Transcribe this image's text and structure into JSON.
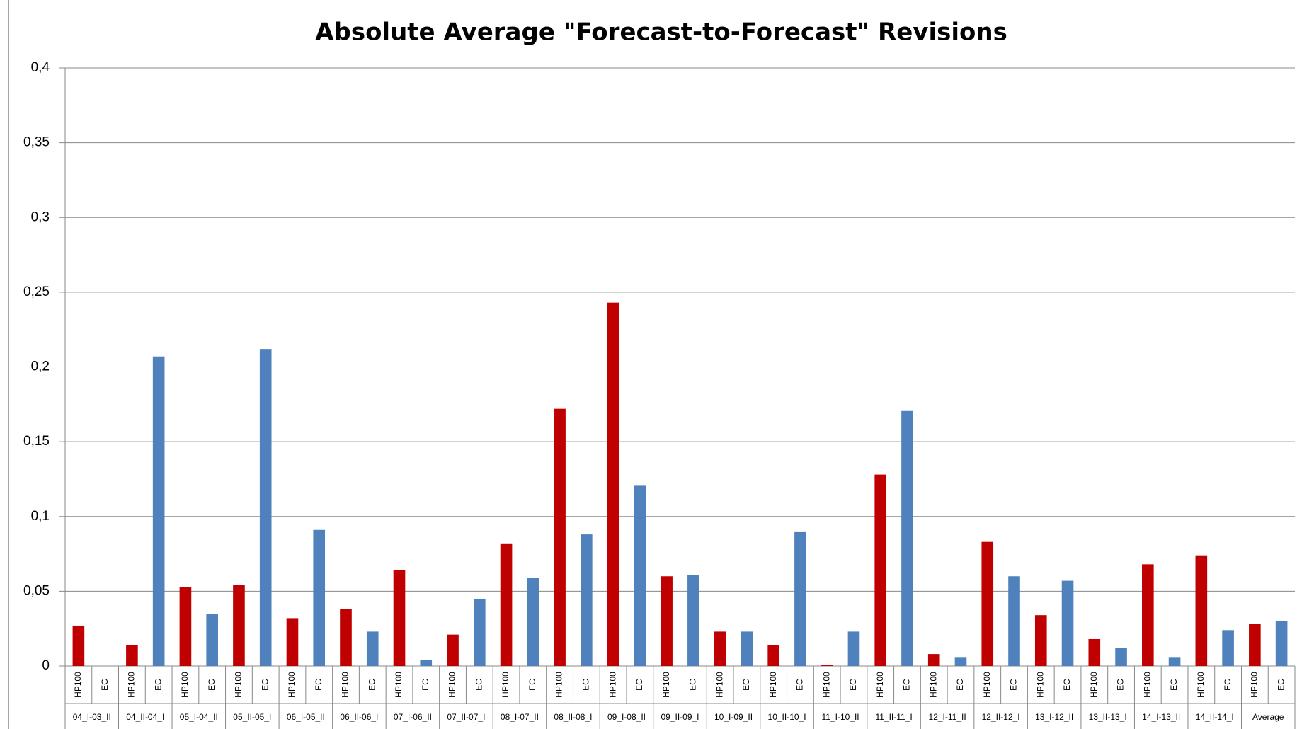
{
  "chart_data": {
    "type": "bar",
    "title": "Absolute Average \"Forecast-to-Forecast\" Revisions",
    "categories": [
      "04_I-03_II",
      "04_II-04_I",
      "05_I-04_II",
      "05_II-05_I",
      "06_I-05_II",
      "06_II-06_I",
      "07_I-06_II",
      "07_II-07_I",
      "08_I-07_II",
      "08_II-08_I",
      "09_I-08_II",
      "09_II-09_I",
      "10_I-09_II",
      "10_II-10_I",
      "11_I-10_II",
      "11_II-11_I",
      "12_I-11_II",
      "12_II-12_I",
      "13_I-12_II",
      "13_II-13_I",
      "14_I-13_II",
      "14_II-14_I",
      "Average"
    ],
    "series": [
      {
        "name": "HP100",
        "color": "#c00000",
        "values": [
          0.027,
          0.014,
          0.053,
          0.054,
          0.032,
          0.038,
          0.064,
          0.021,
          0.082,
          0.172,
          0.243,
          0.06,
          0.023,
          0.014,
          0.0005,
          0.128,
          0.008,
          0.083,
          0.034,
          0.018,
          0.068,
          0.074,
          0.028
        ]
      },
      {
        "name": "EC",
        "color": "#4f81bd",
        "values": [
          0,
          0.207,
          0.035,
          0.212,
          0.091,
          0.023,
          0.004,
          0.045,
          0.059,
          0.088,
          0.121,
          0.061,
          0.023,
          0.09,
          0.023,
          0.171,
          0.006,
          0.06,
          0.057,
          0.012,
          0.006,
          0.024,
          0.03
        ]
      }
    ],
    "ylim": [
      0,
      0.4
    ],
    "yticks": [
      0,
      {
        "value": 0.05,
        "label": "0,05"
      },
      {
        "value": 0.1,
        "label": "0,1"
      },
      {
        "value": 0.15,
        "label": "0,15"
      },
      {
        "value": 0.2,
        "label": "0,2"
      },
      {
        "value": 0.25,
        "label": "0,25"
      },
      {
        "value": 0.3,
        "label": "0,3"
      },
      {
        "value": 0.35,
        "label": "0,35"
      },
      {
        "value": 0.4,
        "label": "0,4"
      }
    ],
    "grid": true
  }
}
